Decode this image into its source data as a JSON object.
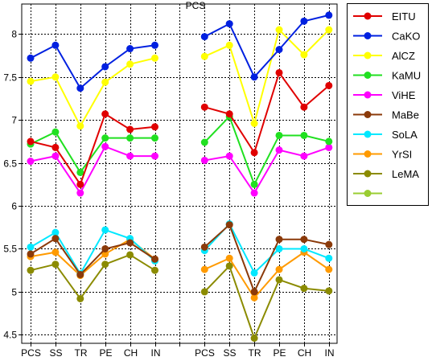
{
  "chart_data": {
    "type": "line",
    "title": "PCS",
    "xlabel": "",
    "ylabel": "",
    "ylim": [
      4.4,
      8.35
    ],
    "y_ticks": [
      "4.5",
      "5",
      "5.5",
      "6",
      "6.5",
      "7",
      "7.5",
      "8"
    ],
    "y_tick_values": [
      4.5,
      5,
      5.5,
      6,
      6.5,
      7,
      7.5,
      8
    ],
    "x_categories": [
      "PCS",
      "SS",
      "TR",
      "PE",
      "CH",
      "IN",
      "",
      "PCS",
      "SS",
      "TR",
      "PE",
      "CH",
      "IN"
    ],
    "grid": true,
    "legend_position": "right",
    "series": [
      {
        "name": "EITU",
        "color": "#e00000",
        "values": [
          6.75,
          6.68,
          6.25,
          7.07,
          6.89,
          6.92,
          null,
          7.15,
          7.07,
          6.62,
          7.55,
          7.15,
          7.4
        ]
      },
      {
        "name": "CaKO",
        "color": "#0020e0",
        "values": [
          7.72,
          7.87,
          7.37,
          7.62,
          7.83,
          7.87,
          null,
          7.97,
          8.12,
          7.5,
          7.82,
          8.15,
          8.22
        ]
      },
      {
        "name": "AlCZ",
        "color": "#ffff00",
        "values": [
          7.45,
          7.5,
          6.93,
          7.44,
          7.65,
          7.72,
          null,
          7.74,
          7.87,
          6.96,
          8.05,
          7.76,
          8.05
        ]
      },
      {
        "name": "KaMU",
        "color": "#20e020",
        "values": [
          6.72,
          6.86,
          6.39,
          6.79,
          6.79,
          6.79,
          null,
          6.74,
          7.04,
          6.25,
          6.82,
          6.82,
          6.75
        ]
      },
      {
        "name": "ViHE",
        "color": "#ff00ff",
        "values": [
          6.52,
          6.58,
          6.15,
          6.69,
          6.58,
          6.58,
          null,
          6.53,
          6.58,
          6.15,
          6.65,
          6.58,
          6.68
        ]
      },
      {
        "name": "MaBe",
        "color": "#8b3a0a",
        "values": [
          5.44,
          5.62,
          5.2,
          5.5,
          5.57,
          5.38,
          null,
          5.52,
          5.78,
          5.0,
          5.61,
          5.61,
          5.55
        ]
      },
      {
        "name": "SoLA",
        "color": "#00e8ff",
        "values": [
          5.52,
          5.69,
          5.21,
          5.72,
          5.62,
          5.36,
          null,
          5.48,
          5.79,
          5.22,
          5.5,
          5.5,
          5.39
        ]
      },
      {
        "name": "YrSI",
        "color": "#ff9a00",
        "values": [
          5.41,
          5.46,
          5.19,
          5.44,
          5.61,
          5.38,
          null,
          5.26,
          5.39,
          4.93,
          5.26,
          5.46,
          5.26
        ]
      },
      {
        "name": "LeMA",
        "color": "#8b8b00",
        "values": [
          5.25,
          5.32,
          4.92,
          5.32,
          5.43,
          5.25,
          null,
          5.0,
          5.3,
          4.46,
          5.14,
          5.04,
          5.01
        ]
      },
      {
        "name": "",
        "color": "#9acd32",
        "values": []
      }
    ]
  }
}
